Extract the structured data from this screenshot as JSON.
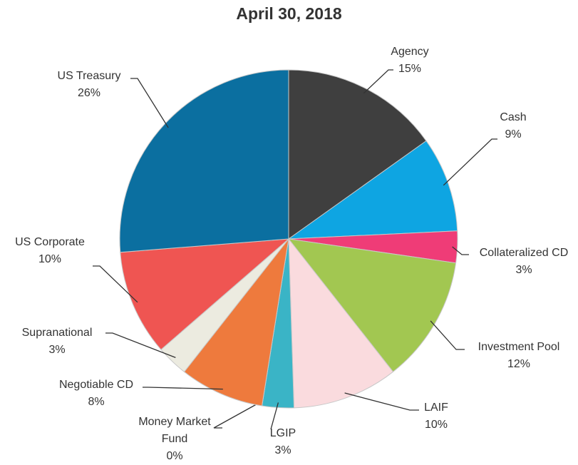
{
  "chart_data": {
    "type": "pie",
    "title": "April 30, 2018",
    "categories": [
      "Agency",
      "Cash",
      "Collateralized CD",
      "Investment Pool",
      "LAIF",
      "LGIP",
      "Money Market Fund",
      "Negotiable CD",
      "Supranational",
      "US Corporate",
      "US Treasury"
    ],
    "values": [
      15,
      9,
      3,
      12,
      10,
      3,
      0,
      8,
      3,
      10,
      26
    ],
    "value_labels": [
      "15%",
      "9%",
      "3%",
      "12%",
      "10%",
      "3%",
      "0%",
      "8%",
      "3%",
      "10%",
      "26%"
    ],
    "colors": [
      "#3f3f3f",
      "#0ea5e2",
      "#ef3c77",
      "#a2c751",
      "#fadbde",
      "#3ab4c6",
      "#8c8c8c",
      "#ee7a3d",
      "#ecebe0",
      "#ef5552",
      "#0b6fa0"
    ]
  }
}
